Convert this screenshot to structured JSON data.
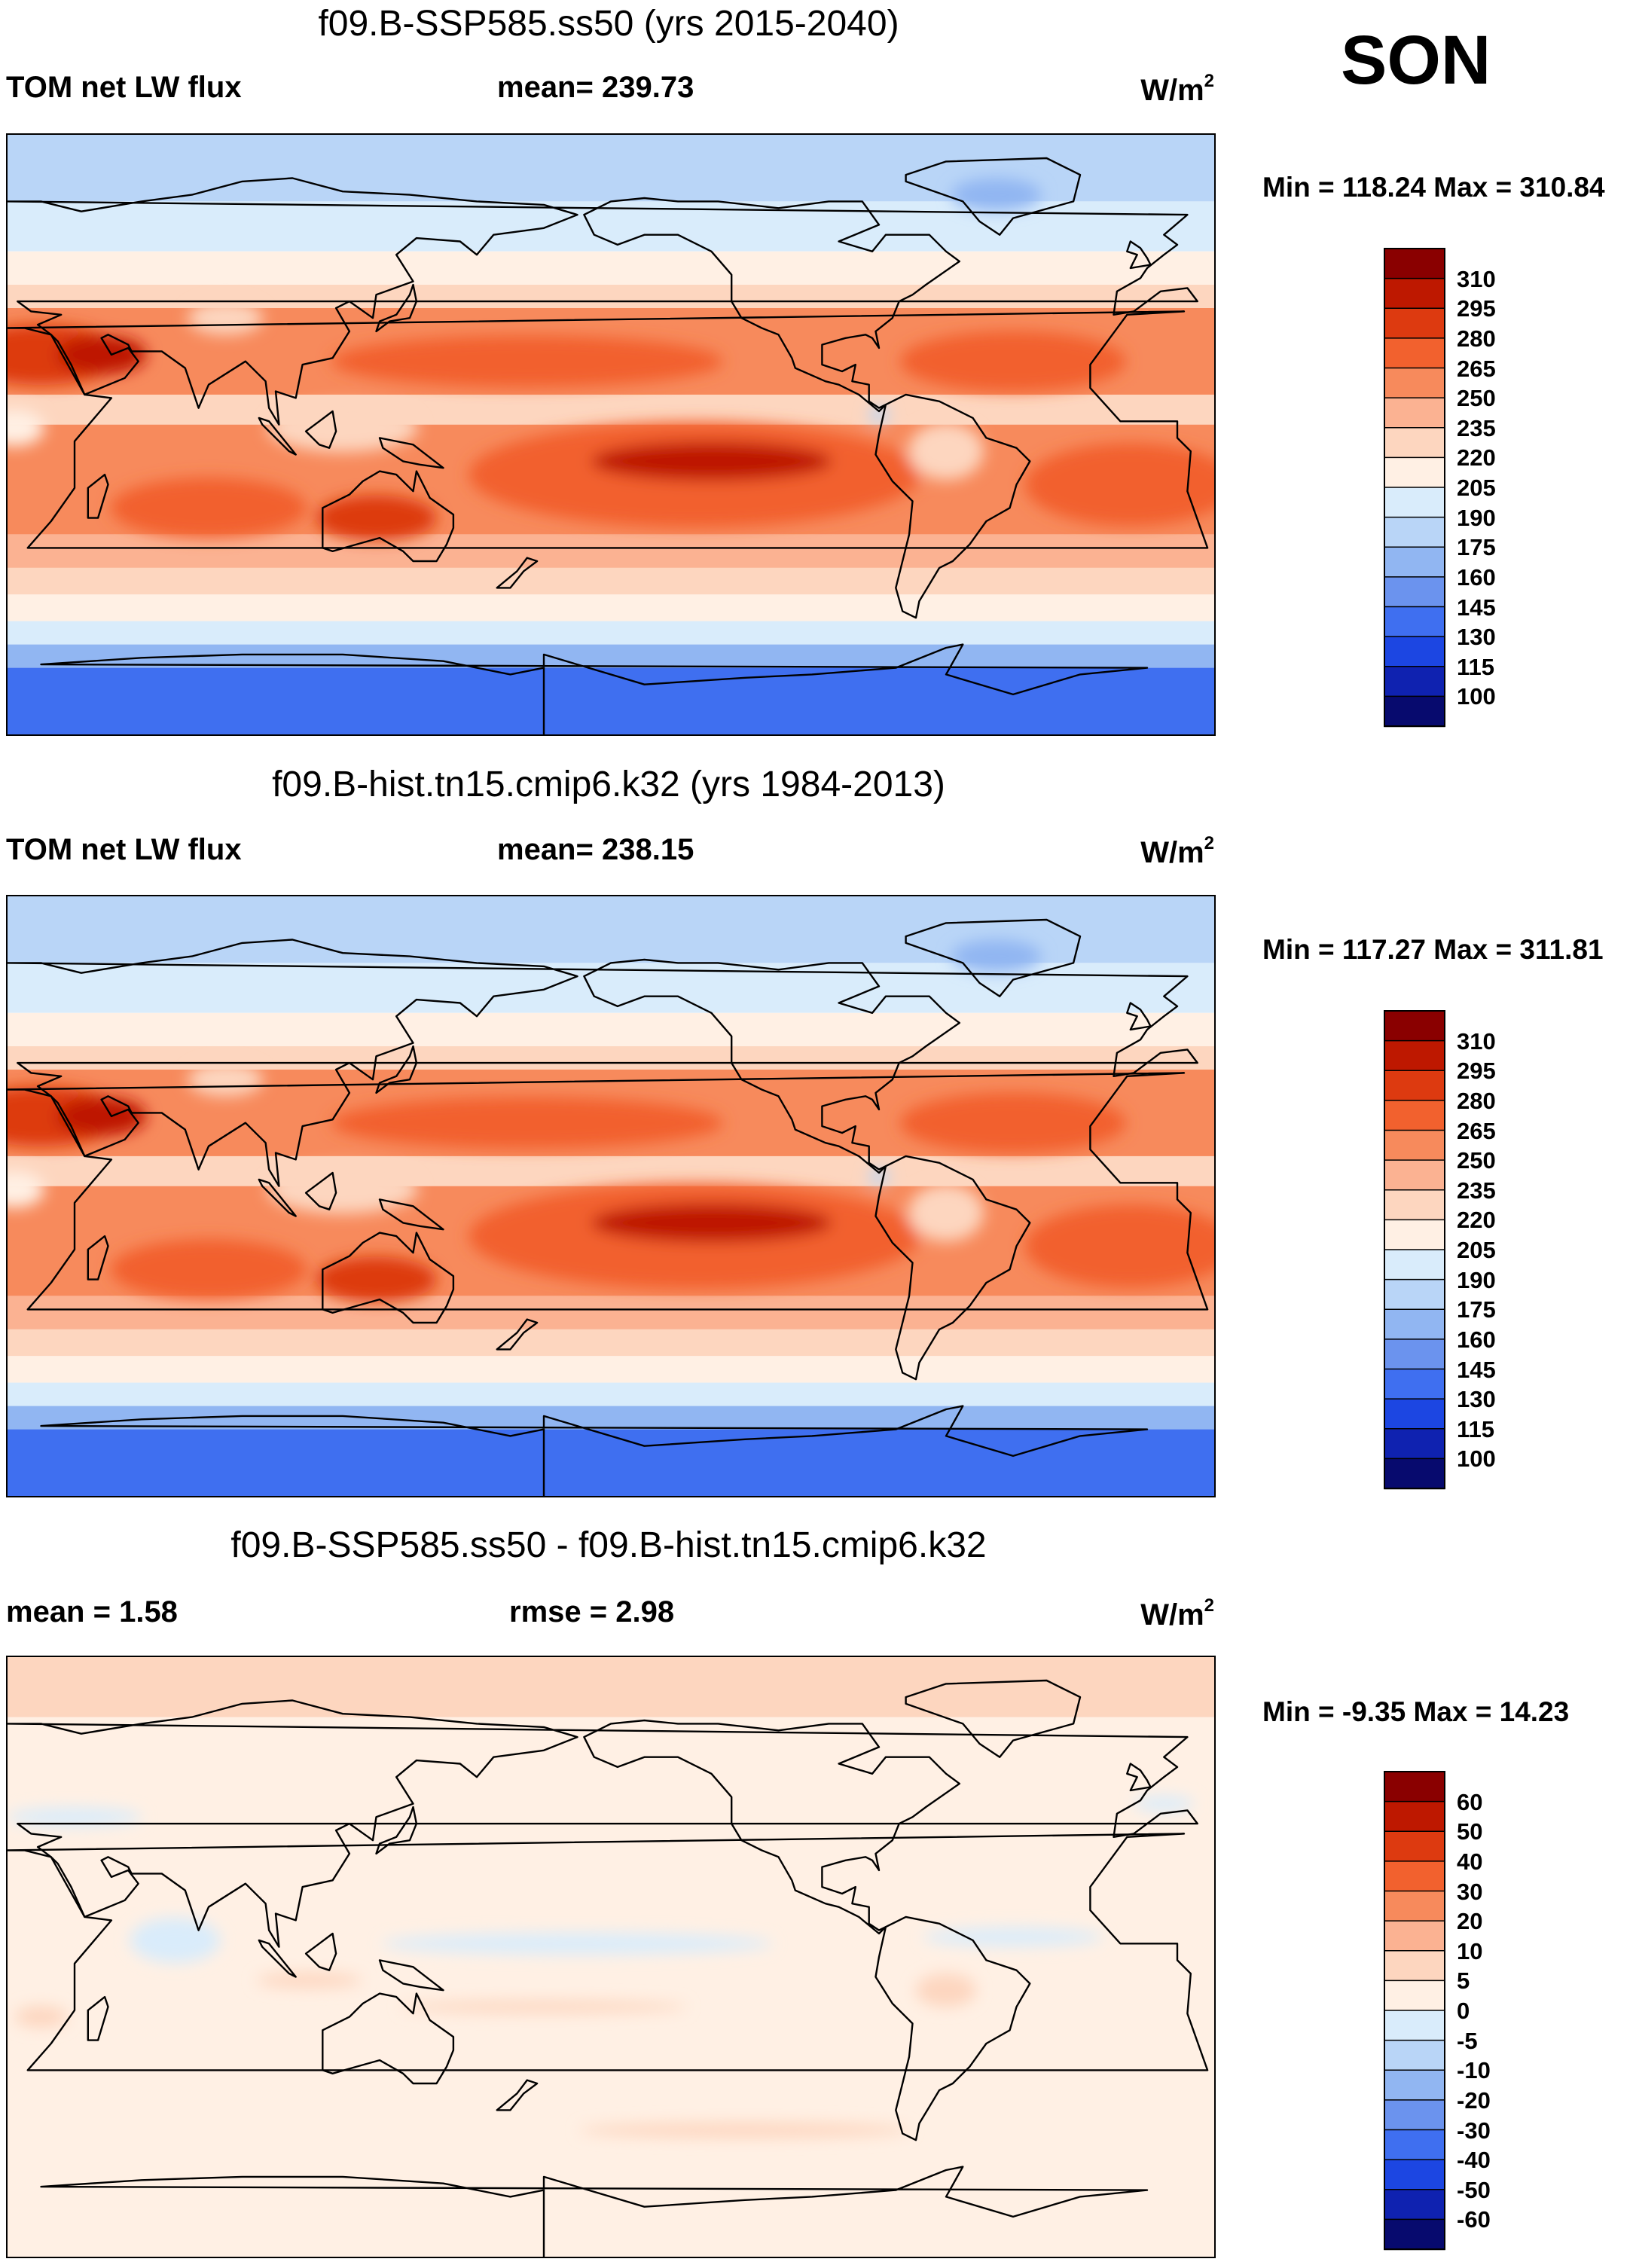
{
  "season": "SON",
  "panels": [
    {
      "title": "f09.B-SSP585.ss50 (yrs 2015-2040)",
      "left_label": "TOM net LW flux",
      "mid_label": "mean= 239.73",
      "units": "W/m",
      "units_sup": "2",
      "minmax": "Min = 118.24 Max = 310.84",
      "type": "abs"
    },
    {
      "title": "f09.B-hist.tn15.cmip6.k32 (yrs 1984-2013)",
      "left_label": "TOM net LW flux",
      "mid_label": "mean= 238.15",
      "units": "W/m",
      "units_sup": "2",
      "minmax": "Min = 117.27 Max = 311.81",
      "type": "abs"
    },
    {
      "title": "f09.B-SSP585.ss50 - f09.B-hist.tn15.cmip6.k32",
      "left_label": "mean =   1.58",
      "mid_label": "rmse =   2.98",
      "units": "W/m",
      "units_sup": "2",
      "minmax": "Min =  -9.35 Max =  14.23",
      "type": "diff"
    }
  ],
  "chart_data": [
    {
      "type": "heatmap",
      "title": "f09.B-SSP585.ss50 (yrs 2015-2040)",
      "variable": "TOM net LW flux",
      "units": "W/m2",
      "mean": 239.73,
      "min": 118.24,
      "max": 310.84,
      "colorbar_levels": [
        310,
        295,
        280,
        265,
        250,
        235,
        220,
        205,
        190,
        175,
        160,
        145,
        130,
        115,
        100
      ],
      "colorbar_colors": [
        "#8a0000",
        "#be1800",
        "#dd3a10",
        "#f2612e",
        "#f78a5c",
        "#fbb292",
        "#fdd6bf",
        "#fff0e4",
        "#d9ecfb",
        "#b9d5f7",
        "#91b6f2",
        "#6b93ee",
        "#3f6ff0",
        "#1c46e2",
        "#0f22b0",
        "#070a6e"
      ]
    },
    {
      "type": "heatmap",
      "title": "f09.B-hist.tn15.cmip6.k32 (yrs 1984-2013)",
      "variable": "TOM net LW flux",
      "units": "W/m2",
      "mean": 238.15,
      "min": 117.27,
      "max": 311.81,
      "colorbar_levels": [
        310,
        295,
        280,
        265,
        250,
        235,
        220,
        205,
        190,
        175,
        160,
        145,
        130,
        115,
        100
      ],
      "colorbar_colors": [
        "#8a0000",
        "#be1800",
        "#dd3a10",
        "#f2612e",
        "#f78a5c",
        "#fbb292",
        "#fdd6bf",
        "#fff0e4",
        "#d9ecfb",
        "#b9d5f7",
        "#91b6f2",
        "#6b93ee",
        "#3f6ff0",
        "#1c46e2",
        "#0f22b0",
        "#070a6e"
      ]
    },
    {
      "type": "heatmap",
      "title": "f09.B-SSP585.ss50 - f09.B-hist.tn15.cmip6.k32",
      "variable": "difference",
      "units": "W/m2",
      "mean": 1.58,
      "rmse": 2.98,
      "min": -9.35,
      "max": 14.23,
      "colorbar_levels": [
        60,
        50,
        40,
        30,
        20,
        10,
        5,
        0,
        -5,
        -10,
        -20,
        -30,
        -40,
        -50,
        -60
      ],
      "colorbar_colors": [
        "#8a0000",
        "#be1800",
        "#dd3a10",
        "#f2612e",
        "#f78a5c",
        "#fbb292",
        "#fdd6bf",
        "#fff0e4",
        "#d9ecfb",
        "#b9d5f7",
        "#91b6f2",
        "#6b93ee",
        "#3f6ff0",
        "#1c46e2",
        "#0f22b0",
        "#070a6e"
      ]
    }
  ]
}
